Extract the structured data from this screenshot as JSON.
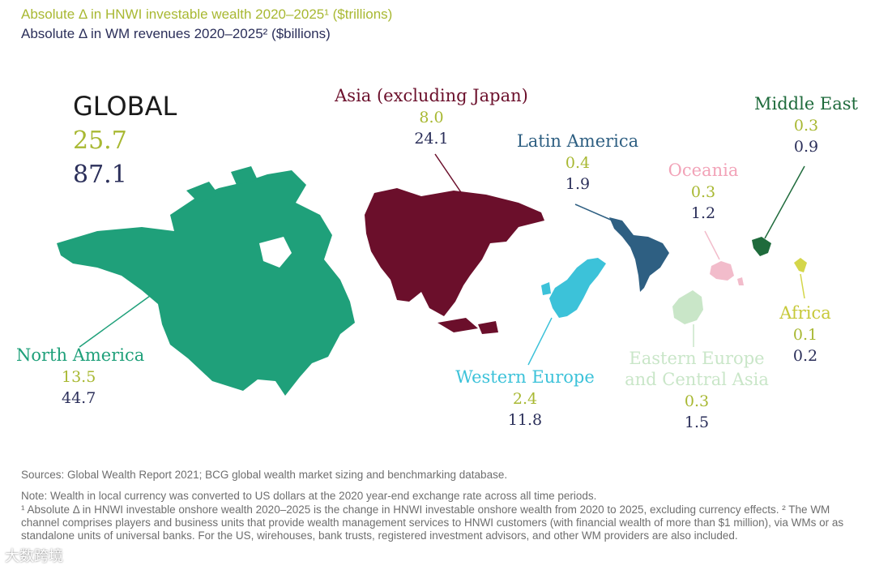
{
  "legend": {
    "line1": "Absolute Δ in HNWI investable wealth 2020–2025¹ ($trillions)",
    "line2": "Absolute Δ in WM revenues 2020–2025² ($billions)"
  },
  "colors": {
    "wealth": "#a8b832",
    "revenue": "#2b2f5a",
    "north_america": "#1fa07a",
    "asia": "#6b0f2b",
    "latin_america": "#2e5f82",
    "western_europe": "#3cc2d9",
    "eastern_europe": "#c9e6c8",
    "oceania": "#f2bccb",
    "middle_east": "#1f6b3c",
    "africa": "#d4d64a"
  },
  "global": {
    "title": "GLOBAL",
    "wealth": "25.7",
    "revenue": "87.1"
  },
  "regions": {
    "north_america": {
      "name": "North America",
      "wealth": "13.5",
      "revenue": "44.7"
    },
    "asia": {
      "name": "Asia (excluding Japan)",
      "wealth": "8.0",
      "revenue": "24.1"
    },
    "latin_america": {
      "name": "Latin America",
      "wealth": "0.4",
      "revenue": "1.9"
    },
    "oceania": {
      "name": "Oceania",
      "wealth": "0.3",
      "revenue": "1.2"
    },
    "middle_east": {
      "name": "Middle East",
      "wealth": "0.3",
      "revenue": "0.9"
    },
    "africa": {
      "name": "Africa",
      "wealth": "0.1",
      "revenue": "0.2"
    },
    "western_europe": {
      "name": "Western Europe",
      "wealth": "2.4",
      "revenue": "11.8"
    },
    "eastern_europe": {
      "name_line1": "Eastern Europe",
      "name_line2": "and Central Asia",
      "wealth": "0.3",
      "revenue": "1.5"
    }
  },
  "footer": {
    "sources": "Sources: Global Wealth Report 2021; BCG global wealth market sizing and benchmarking database.",
    "note": "Note: Wealth in local currency was converted to US dollars at the 2020 year-end exchange rate across all time periods.",
    "footnote1": "¹ Absolute Δ in HNWI investable onshore wealth 2020–2025 is the change in HNWI investable onshore wealth from 2020 to 2025, excluding currency effects. ² The WM channel comprises players and business units that provide wealth management services to HNWI customers (with financial wealth of more than $1 million), via WMs or as standalone units of universal banks. For the US, wirehouses, bank trusts, registered investment advisors, and other WM providers are also included."
  },
  "watermark": "大数跨境"
}
